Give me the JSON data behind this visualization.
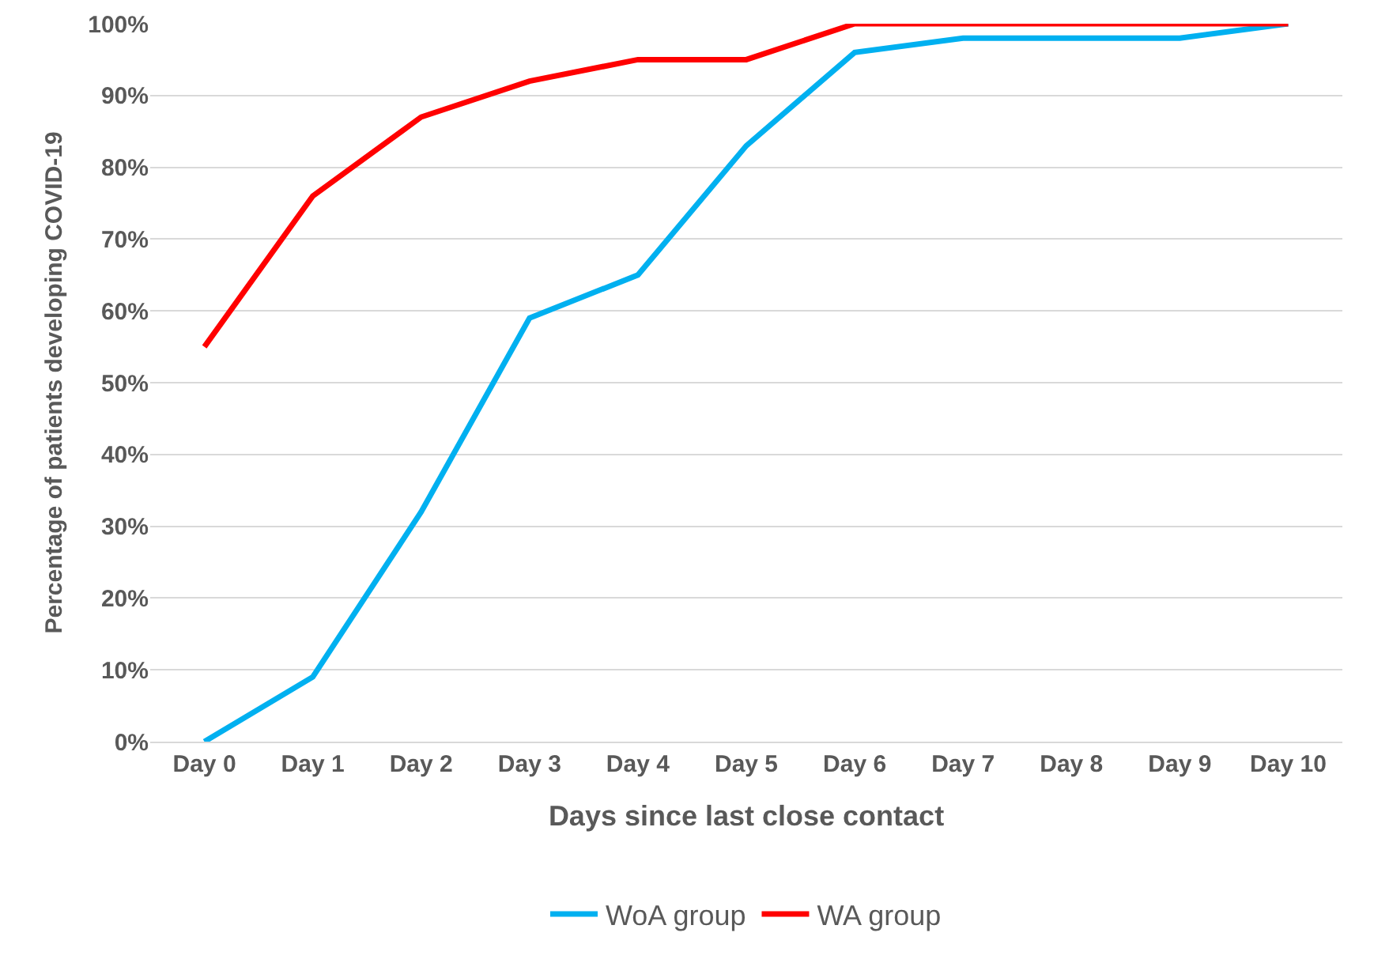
{
  "chart_data": {
    "type": "line",
    "xlabel": "Days since last close contact",
    "ylabel": "Percentage of patients developing COVID-19",
    "categories": [
      "Day 0",
      "Day 1",
      "Day 2",
      "Day 3",
      "Day 4",
      "Day 5",
      "Day 6",
      "Day 7",
      "Day 8",
      "Day 9",
      "Day 10"
    ],
    "series": [
      {
        "name": "WoA group",
        "color": "#00b0f0",
        "values": [
          0,
          9,
          32,
          59,
          65,
          83,
          96,
          98,
          98,
          98,
          100
        ]
      },
      {
        "name": "WA group",
        "color": "#ff0000",
        "values": [
          55,
          76,
          87,
          92,
          95,
          95,
          100,
          100,
          100,
          100,
          100
        ]
      }
    ],
    "ylim": [
      0,
      100
    ],
    "yticks": [
      {
        "value": 0,
        "label": "0%"
      },
      {
        "value": 10,
        "label": "10%"
      },
      {
        "value": 20,
        "label": "20%"
      },
      {
        "value": 30,
        "label": "30%"
      },
      {
        "value": 40,
        "label": "40%"
      },
      {
        "value": 50,
        "label": "50%"
      },
      {
        "value": 60,
        "label": "60%"
      },
      {
        "value": 70,
        "label": "70%"
      },
      {
        "value": 80,
        "label": "80%"
      },
      {
        "value": 90,
        "label": "90%"
      },
      {
        "value": 100,
        "label": "100%"
      }
    ],
    "grid": "y",
    "legend": "bottom",
    "marker": "none",
    "line_style": "solid"
  }
}
